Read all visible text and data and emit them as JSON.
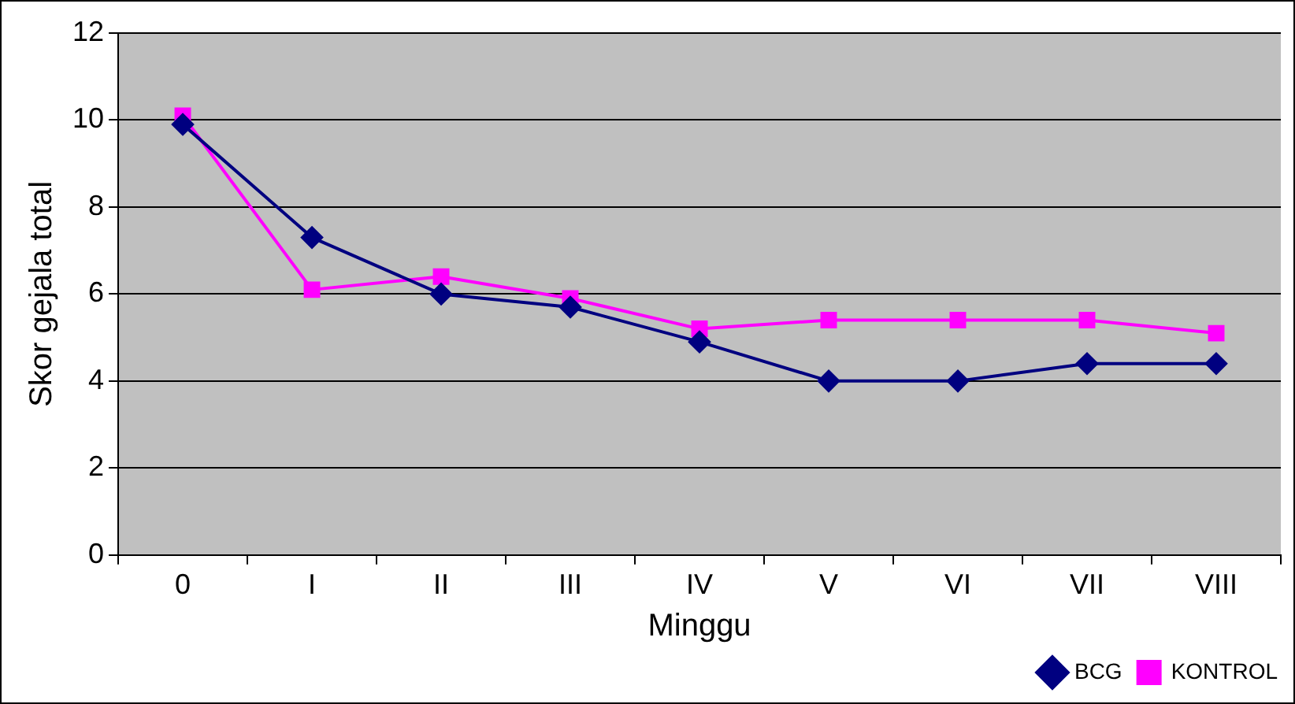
{
  "chart_data": {
    "type": "line",
    "xlabel": "Minggu",
    "ylabel": "Skor gejala total",
    "categories": [
      "0",
      "I",
      "II",
      "III",
      "IV",
      "V",
      "VI",
      "VII",
      "VIII"
    ],
    "series": [
      {
        "name": "BCG",
        "color": "#000080",
        "marker": "diamond",
        "values": [
          9.9,
          7.3,
          6.0,
          5.7,
          4.9,
          4.0,
          4.0,
          4.4,
          4.4
        ]
      },
      {
        "name": "KONTROL",
        "color": "#ff00ff",
        "marker": "square",
        "values": [
          10.1,
          6.1,
          6.4,
          5.9,
          5.2,
          5.4,
          5.4,
          5.4,
          5.1
        ]
      }
    ],
    "ylim": [
      0,
      12
    ],
    "yticks": [
      0,
      2,
      4,
      6,
      8,
      10,
      12
    ],
    "grid": "y",
    "legend": "bottom right"
  }
}
